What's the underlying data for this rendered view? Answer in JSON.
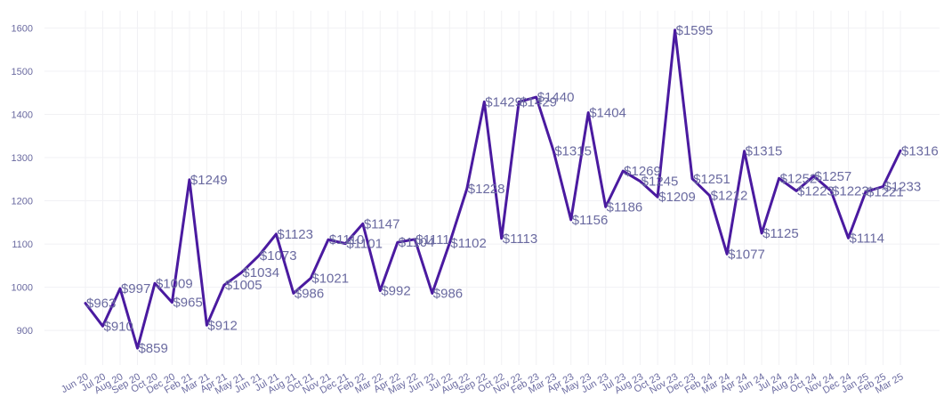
{
  "chart_data": {
    "type": "line",
    "title": "",
    "xlabel": "",
    "ylabel": "",
    "ylim": [
      820,
      1640
    ],
    "yticks": [
      900,
      1000,
      1100,
      1200,
      1300,
      1400,
      1500,
      1600
    ],
    "grid": true,
    "line_color": "#4a1aa0",
    "label_color": "#6a6aa0",
    "categories": [
      "Jun 20",
      "Jul 20",
      "Aug 20",
      "Sep 20",
      "Oct 20",
      "Dec 20",
      "Feb 21",
      "Mar 21",
      "Apr 21",
      "May 21",
      "Jun 21",
      "Jul 21",
      "Aug 21",
      "Oct 21",
      "Nov 21",
      "Dec 21",
      "Feb 22",
      "Mar 22",
      "Apr 22",
      "May 22",
      "Jun 22",
      "Jul 22",
      "Aug 22",
      "Sep 22",
      "Oct 22",
      "Nov 22",
      "Feb 23",
      "Mar 23",
      "Apr 23",
      "May 23",
      "Jun 23",
      "Jul 23",
      "Aug 23",
      "Oct 23",
      "Nov 23",
      "Dec 23",
      "Feb 24",
      "Mar 24",
      "Apr 24",
      "Jun 24",
      "Jul 24",
      "Aug 24",
      "Oct 24",
      "Nov 24",
      "Dec 24",
      "Jan 25",
      "Feb 25",
      "Mar 25"
    ],
    "values": [
      963,
      910,
      997,
      859,
      1009,
      965,
      1249,
      912,
      1005,
      1034,
      1073,
      1123,
      986,
      1021,
      1110,
      1101,
      1147,
      992,
      1104,
      1111,
      986,
      1102,
      1228,
      1429,
      1113,
      1429,
      1440,
      1315,
      1156,
      1404,
      1186,
      1269,
      1245,
      1209,
      1595,
      1251,
      1212,
      1077,
      1315,
      1125,
      1252,
      1223,
      1257,
      1223,
      1114,
      1221,
      1233,
      1316
    ],
    "data_labels": [
      "$963",
      "$910",
      "$997",
      "$859",
      "$1009",
      "$965",
      "$1249",
      "$912",
      "$1005",
      "$1034",
      "$1073",
      "$1123",
      "$986",
      "$1021",
      "$1110",
      "$1101",
      "$1147",
      "$992",
      "$1104",
      "$1111",
      "$986",
      "$1102",
      "$1228",
      "$1429",
      "$1113",
      "$1429",
      "$1440",
      "$1315",
      "$1156",
      "$1404",
      "$1186",
      "$1269",
      "$1245",
      "$1209",
      "$1595",
      "$1251",
      "$1212",
      "$1077",
      "$1315",
      "$1125",
      "$1252",
      "$1223",
      "$1257",
      "$1223",
      "$1114",
      "$1221",
      "$1233",
      "$1316"
    ]
  }
}
